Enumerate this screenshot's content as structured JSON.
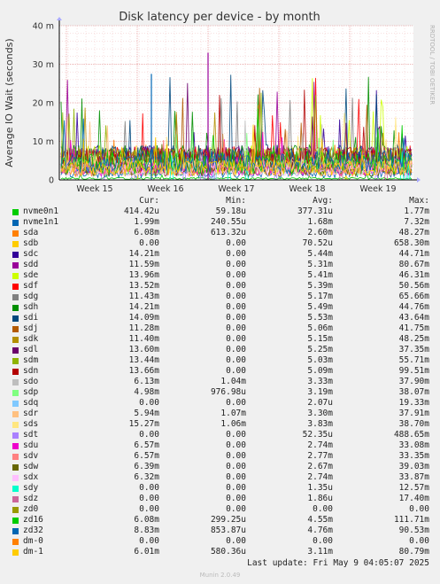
{
  "chart_data": {
    "type": "line",
    "title": "Disk latency per device - by month",
    "ylabel": "Average IO Wait (seconds)",
    "ylim": [
      0,
      40
    ],
    "yticks": [
      {
        "v": 0,
        "label": "0"
      },
      {
        "v": 10,
        "label": "10 m"
      },
      {
        "v": 20,
        "label": "20 m"
      },
      {
        "v": 30,
        "label": "30 m"
      },
      {
        "v": 40,
        "label": "40 m"
      }
    ],
    "x_week_labels": [
      {
        "label": "Week 15",
        "pos": 0.12
      },
      {
        "label": "Week 16",
        "pos": 0.32
      },
      {
        "label": "Week 17",
        "pos": 0.52
      },
      {
        "label": "Week 18",
        "pos": 0.72
      },
      {
        "label": "Week 19",
        "pos": 0.92
      }
    ],
    "grid": true,
    "watermark": "RRDTOOL / TOBI OETIKER",
    "legend_headers": [
      "Cur:",
      "Min:",
      "Avg:",
      "Max:"
    ],
    "series": [
      {
        "name": "nvme0n1",
        "color": "#00cc00",
        "cur": "414.42u",
        "min": "59.18u",
        "avg": "377.31u",
        "max": "1.77m",
        "avg_ms": 0.38,
        "max_ms": 1.77
      },
      {
        "name": "nvme1n1",
        "color": "#0066b3",
        "cur": "1.99m",
        "min": "240.55u",
        "avg": "1.68m",
        "max": "7.32m",
        "avg_ms": 1.68,
        "max_ms": 7.32
      },
      {
        "name": "sda",
        "color": "#ff8000",
        "cur": "6.08m",
        "min": "613.32u",
        "avg": "2.60m",
        "max": "48.27m",
        "avg_ms": 2.6,
        "max_ms": 48.27
      },
      {
        "name": "sdb",
        "color": "#ffcc00",
        "cur": "0.00",
        "min": "0.00",
        "avg": "70.52u",
        "max": "658.30m",
        "avg_ms": 0.07,
        "max_ms": 658.3
      },
      {
        "name": "sdc",
        "color": "#330099",
        "cur": "14.21m",
        "min": "0.00",
        "avg": "5.44m",
        "max": "44.71m",
        "avg_ms": 5.44,
        "max_ms": 44.71
      },
      {
        "name": "sdd",
        "color": "#990099",
        "cur": "11.59m",
        "min": "0.00",
        "avg": "5.31m",
        "max": "80.67m",
        "avg_ms": 5.31,
        "max_ms": 80.67
      },
      {
        "name": "sde",
        "color": "#ccff00",
        "cur": "13.96m",
        "min": "0.00",
        "avg": "5.41m",
        "max": "46.31m",
        "avg_ms": 5.41,
        "max_ms": 46.31
      },
      {
        "name": "sdf",
        "color": "#ff0000",
        "cur": "13.52m",
        "min": "0.00",
        "avg": "5.39m",
        "max": "50.56m",
        "avg_ms": 5.39,
        "max_ms": 50.56
      },
      {
        "name": "sdg",
        "color": "#808080",
        "cur": "11.43m",
        "min": "0.00",
        "avg": "5.17m",
        "max": "65.66m",
        "avg_ms": 5.17,
        "max_ms": 65.66
      },
      {
        "name": "sdh",
        "color": "#008f00",
        "cur": "14.21m",
        "min": "0.00",
        "avg": "5.49m",
        "max": "44.76m",
        "avg_ms": 5.49,
        "max_ms": 44.76
      },
      {
        "name": "sdi",
        "color": "#00487d",
        "cur": "14.09m",
        "min": "0.00",
        "avg": "5.53m",
        "max": "43.64m",
        "avg_ms": 5.53,
        "max_ms": 43.64
      },
      {
        "name": "sdj",
        "color": "#b35a00",
        "cur": "11.28m",
        "min": "0.00",
        "avg": "5.06m",
        "max": "41.75m",
        "avg_ms": 5.06,
        "max_ms": 41.75
      },
      {
        "name": "sdk",
        "color": "#b38f00",
        "cur": "11.40m",
        "min": "0.00",
        "avg": "5.15m",
        "max": "48.25m",
        "avg_ms": 5.15,
        "max_ms": 48.25
      },
      {
        "name": "sdl",
        "color": "#6b006b",
        "cur": "13.60m",
        "min": "0.00",
        "avg": "5.25m",
        "max": "37.35m",
        "avg_ms": 5.25,
        "max_ms": 37.35
      },
      {
        "name": "sdm",
        "color": "#8fb300",
        "cur": "13.44m",
        "min": "0.00",
        "avg": "5.03m",
        "max": "55.71m",
        "avg_ms": 5.03,
        "max_ms": 55.71
      },
      {
        "name": "sdn",
        "color": "#b30000",
        "cur": "13.66m",
        "min": "0.00",
        "avg": "5.09m",
        "max": "99.51m",
        "avg_ms": 5.09,
        "max_ms": 99.51
      },
      {
        "name": "sdo",
        "color": "#bebebe",
        "cur": "6.13m",
        "min": "1.04m",
        "avg": "3.33m",
        "max": "37.90m",
        "avg_ms": 3.33,
        "max_ms": 37.9
      },
      {
        "name": "sdp",
        "color": "#80ff80",
        "cur": "4.98m",
        "min": "976.98u",
        "avg": "3.19m",
        "max": "38.07m",
        "avg_ms": 3.19,
        "max_ms": 38.07
      },
      {
        "name": "sdq",
        "color": "#80c9ff",
        "cur": "0.00",
        "min": "0.00",
        "avg": "2.07u",
        "max": "19.33m",
        "avg_ms": 0.002,
        "max_ms": 19.33
      },
      {
        "name": "sdr",
        "color": "#ffc080",
        "cur": "5.94m",
        "min": "1.07m",
        "avg": "3.30m",
        "max": "37.91m",
        "avg_ms": 3.3,
        "max_ms": 37.91
      },
      {
        "name": "sds",
        "color": "#ffe680",
        "cur": "15.27m",
        "min": "1.06m",
        "avg": "3.83m",
        "max": "38.70m",
        "avg_ms": 3.83,
        "max_ms": 38.7
      },
      {
        "name": "sdt",
        "color": "#aa80ff",
        "cur": "0.00",
        "min": "0.00",
        "avg": "52.35u",
        "max": "488.65m",
        "avg_ms": 0.05,
        "max_ms": 488.65
      },
      {
        "name": "sdu",
        "color": "#ee00cc",
        "cur": "6.57m",
        "min": "0.00",
        "avg": "2.74m",
        "max": "33.08m",
        "avg_ms": 2.74,
        "max_ms": 33.08
      },
      {
        "name": "sdv",
        "color": "#ff8080",
        "cur": "6.57m",
        "min": "0.00",
        "avg": "2.77m",
        "max": "33.35m",
        "avg_ms": 2.77,
        "max_ms": 33.35
      },
      {
        "name": "sdw",
        "color": "#666600",
        "cur": "6.39m",
        "min": "0.00",
        "avg": "2.67m",
        "max": "39.03m",
        "avg_ms": 2.67,
        "max_ms": 39.03
      },
      {
        "name": "sdx",
        "color": "#ffbfff",
        "cur": "6.32m",
        "min": "0.00",
        "avg": "2.74m",
        "max": "33.87m",
        "avg_ms": 2.74,
        "max_ms": 33.87
      },
      {
        "name": "sdy",
        "color": "#00ffcc",
        "cur": "0.00",
        "min": "0.00",
        "avg": "1.35u",
        "max": "12.57m",
        "avg_ms": 0.001,
        "max_ms": 12.57
      },
      {
        "name": "sdz",
        "color": "#cc6699",
        "cur": "0.00",
        "min": "0.00",
        "avg": "1.86u",
        "max": "17.40m",
        "avg_ms": 0.002,
        "max_ms": 17.4
      },
      {
        "name": "zd0",
        "color": "#999900",
        "cur": "0.00",
        "min": "0.00",
        "avg": "0.00",
        "max": "0.00",
        "avg_ms": 0,
        "max_ms": 0
      },
      {
        "name": "zd16",
        "color": "#00cc00",
        "cur": "6.08m",
        "min": "299.25u",
        "avg": "4.55m",
        "max": "111.71m",
        "avg_ms": 4.55,
        "max_ms": 111.71
      },
      {
        "name": "zd32",
        "color": "#0066b3",
        "cur": "8.83m",
        "min": "853.87u",
        "avg": "4.76m",
        "max": "90.53m",
        "avg_ms": 4.76,
        "max_ms": 90.53
      },
      {
        "name": "dm-0",
        "color": "#ff8000",
        "cur": "0.00",
        "min": "0.00",
        "avg": "0.00",
        "max": "0.00",
        "avg_ms": 0,
        "max_ms": 0
      },
      {
        "name": "dm-1",
        "color": "#ffcc00",
        "cur": "6.01m",
        "min": "580.36u",
        "avg": "3.11m",
        "max": "80.79m",
        "avg_ms": 3.11,
        "max_ms": 80.79
      }
    ]
  },
  "footer": {
    "last_update": "Last update: Fri May  9 04:05:07 2025",
    "munin_version": "Munin 2.0.49"
  }
}
